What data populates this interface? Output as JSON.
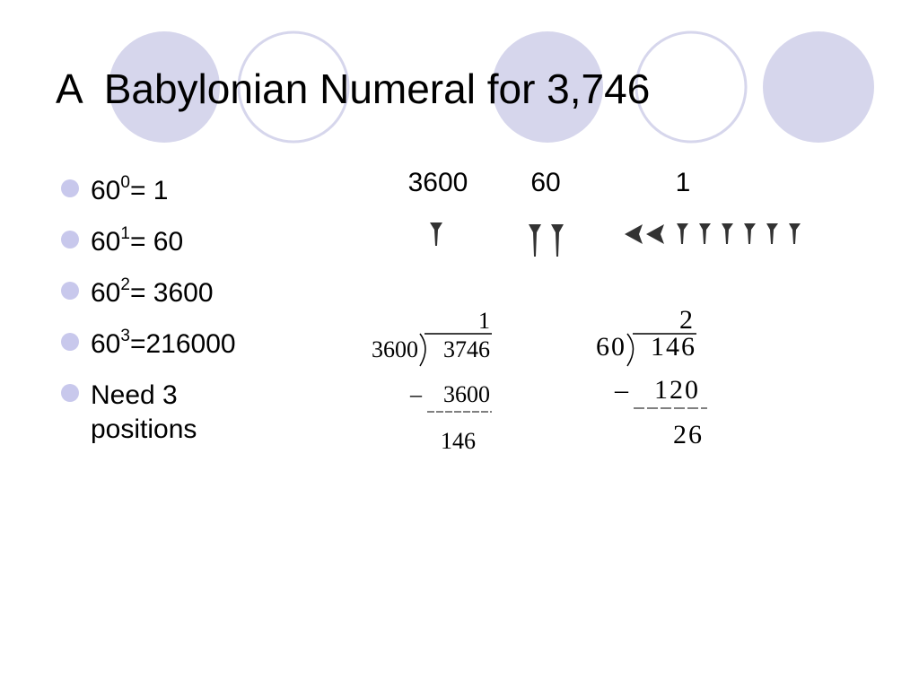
{
  "title": "A  Babylonian Numeral for 3,746",
  "bullets": [
    {
      "base": "60",
      "exp": "0",
      "rest": " = 1"
    },
    {
      "base": "60",
      "exp": "1",
      "rest": " = 60"
    },
    {
      "base": "60",
      "exp": "2",
      "rest": " = 3600"
    },
    {
      "base": "60",
      "exp": "3",
      "rest": " =216000"
    },
    {
      "lines": [
        "Need 3",
        "positions"
      ]
    }
  ],
  "place_values": [
    "3600",
    "60",
    "1"
  ],
  "divisions": [
    {
      "quotient": "1",
      "divisor": "3600",
      "dividend": "3746",
      "sign": "–",
      "subtrahend": "3600",
      "remainder": "146"
    },
    {
      "quotient": "2",
      "divisor": "60",
      "dividend": "146",
      "sign": "–",
      "subtrahend": "120",
      "remainder": "26"
    }
  ]
}
